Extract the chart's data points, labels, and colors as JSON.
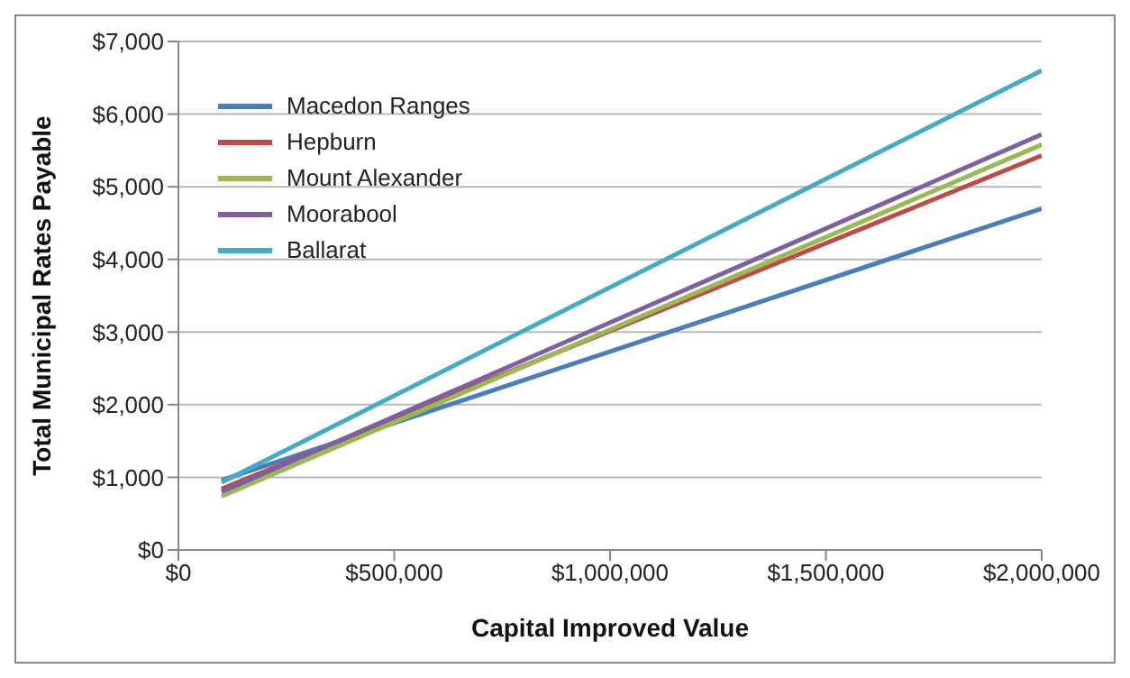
{
  "chart_data": {
    "type": "line",
    "xlabel": "Capital Improved Value",
    "ylabel": "Total Municipal Rates Payable",
    "x": [
      100000,
      2000000
    ],
    "series": [
      {
        "name": "Macedon Ranges",
        "color": "#4a7ebb",
        "values": [
          960,
          4700
        ]
      },
      {
        "name": "Hepburn",
        "color": "#be4b48",
        "values": [
          840,
          5430
        ]
      },
      {
        "name": "Mount Alexander",
        "color": "#98b954",
        "values": [
          740,
          5580
        ]
      },
      {
        "name": "Moorabool",
        "color": "#7d60a0",
        "values": [
          800,
          5720
        ]
      },
      {
        "name": "Ballarat",
        "color": "#46aac5",
        "values": [
          930,
          6600
        ]
      }
    ],
    "xlim": [
      0,
      2000000
    ],
    "xticks": [
      {
        "value": 0,
        "label": "$0"
      },
      {
        "value": 500000,
        "label": "$500,000"
      },
      {
        "value": 1000000,
        "label": "$1,000,000"
      },
      {
        "value": 1500000,
        "label": "$1,500,000"
      },
      {
        "value": 2000000,
        "label": "$2,000,000"
      }
    ],
    "ylim": [
      0,
      7000
    ],
    "yticks": [
      {
        "value": 0,
        "label": "$0"
      },
      {
        "value": 1000,
        "label": "$1,000"
      },
      {
        "value": 2000,
        "label": "$2,000"
      },
      {
        "value": 3000,
        "label": "$3,000"
      },
      {
        "value": 4000,
        "label": "$4,000"
      },
      {
        "value": 5000,
        "label": "$5,000"
      },
      {
        "value": 6000,
        "label": "$6,000"
      },
      {
        "value": 7000,
        "label": "$7,000"
      }
    ],
    "grid": "y",
    "legend": "top left",
    "marker": "none",
    "line_style": "solid"
  }
}
